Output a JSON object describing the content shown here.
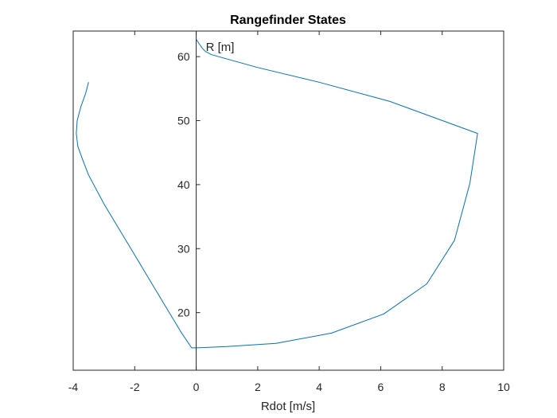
{
  "chart_data": {
    "type": "line",
    "title": "Rangefinder States",
    "xlabel": "Rdot [m/s]",
    "ylabel": "R [m]",
    "xlim": [
      -4,
      10
    ],
    "ylim": [
      11,
      64
    ],
    "xticks": [
      -4,
      -2,
      0,
      2,
      4,
      6,
      8,
      10
    ],
    "yticks": [
      20,
      30,
      40,
      50,
      60
    ],
    "grid": false,
    "box": true,
    "y_axis_location": "origin",
    "series": [
      {
        "color": "#0072BD",
        "points": [
          [
            -3.5,
            56.0
          ],
          [
            -3.6,
            54.2
          ],
          [
            -3.75,
            52.2
          ],
          [
            -3.87,
            50.0
          ],
          [
            -3.9,
            48.0
          ],
          [
            -3.85,
            46.0
          ],
          [
            -3.7,
            44.0
          ],
          [
            -3.5,
            41.5
          ],
          [
            -3.0,
            37.0
          ],
          [
            -2.5,
            33.0
          ],
          [
            -2.0,
            29.0
          ],
          [
            -1.5,
            25.0
          ],
          [
            -1.0,
            21.0
          ],
          [
            -0.5,
            17.0
          ],
          [
            -0.15,
            14.5
          ],
          [
            0.0,
            14.5
          ],
          [
            1.0,
            14.7
          ],
          [
            2.6,
            15.2
          ],
          [
            4.4,
            16.8
          ],
          [
            6.1,
            19.8
          ],
          [
            7.5,
            24.5
          ],
          [
            8.4,
            31.3
          ],
          [
            8.9,
            40.2
          ],
          [
            9.15,
            48.0
          ],
          [
            6.3,
            53.0
          ],
          [
            4.0,
            56.0
          ],
          [
            2.0,
            58.3
          ],
          [
            0.5,
            60.3
          ],
          [
            0.3,
            60.8
          ],
          [
            0.2,
            61.3
          ],
          [
            0.1,
            62.0
          ],
          [
            0.0,
            62.7
          ]
        ]
      }
    ]
  }
}
